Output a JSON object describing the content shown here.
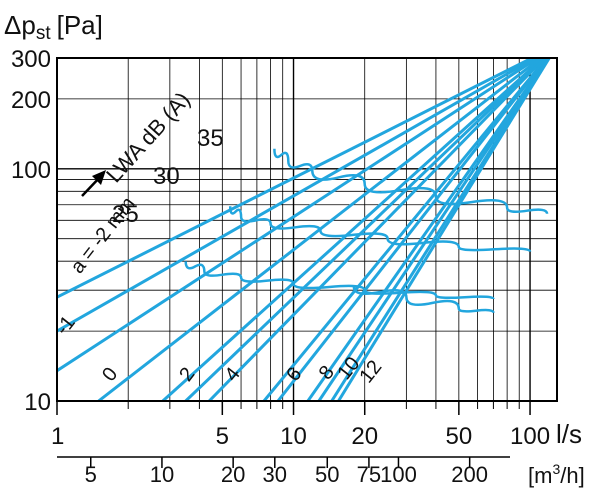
{
  "chart_data": {
    "type": "line",
    "y_axis": {
      "label": "Δp",
      "label_sub": "st",
      "unit": "[Pa]",
      "scale": "log",
      "range": [
        10,
        300
      ],
      "ticks": [
        {
          "value": 10,
          "label": "10"
        },
        {
          "value": 100,
          "label": "100"
        },
        {
          "value": 200,
          "label": "200"
        },
        {
          "value": 300,
          "label": "300"
        }
      ]
    },
    "x_axis_top": {
      "unit": "l/s",
      "scale": "log",
      "range": [
        1,
        130
      ],
      "ticks": [
        {
          "value": 1,
          "label": "1"
        },
        {
          "value": 5,
          "label": "5"
        },
        {
          "value": 10,
          "label": "10"
        },
        {
          "value": 20,
          "label": "20"
        },
        {
          "value": 50,
          "label": "50"
        },
        {
          "value": 100,
          "label": "100"
        }
      ]
    },
    "x_axis_bottom": {
      "unit_base": "[m",
      "unit_sup": "3",
      "unit_tail": "/h]",
      "scale": "log",
      "ticks": [
        {
          "value": 5,
          "label": "5"
        },
        {
          "value": 10,
          "label": "10"
        },
        {
          "value": 20,
          "label": "20"
        },
        {
          "value": 30,
          "label": "30"
        },
        {
          "value": 50,
          "label": "50"
        },
        {
          "value": 75,
          "label": "75"
        },
        {
          "value": 100,
          "label": "100"
        },
        {
          "value": 200,
          "label": "200"
        }
      ]
    },
    "grid": true,
    "series_color": "#22a6de",
    "lines": [
      {
        "label": "a = -2 mm",
        "points": [
          [
            1,
            28
          ],
          [
            130,
            340
          ]
        ]
      },
      {
        "label": "-1",
        "points": [
          [
            1,
            20
          ],
          [
            130,
            340
          ]
        ]
      },
      {
        "label": "0",
        "points": [
          [
            1,
            13.5
          ],
          [
            130,
            340
          ]
        ]
      },
      {
        "label": "",
        "points": [
          [
            1.5,
            10
          ],
          [
            130,
            340
          ]
        ]
      },
      {
        "label": "2",
        "points": [
          [
            2.8,
            10
          ],
          [
            130,
            340
          ]
        ]
      },
      {
        "label": "",
        "points": [
          [
            3.5,
            10
          ],
          [
            130,
            340
          ]
        ]
      },
      {
        "label": "4",
        "points": [
          [
            4.4,
            10
          ],
          [
            130,
            340
          ]
        ]
      },
      {
        "label": "",
        "points": [
          [
            7.5,
            10
          ],
          [
            130,
            340
          ]
        ]
      },
      {
        "label": "6",
        "points": [
          [
            8.6,
            10
          ],
          [
            130,
            340
          ]
        ]
      },
      {
        "label": "",
        "points": [
          [
            11.5,
            10
          ],
          [
            130,
            340
          ]
        ]
      },
      {
        "label": "8",
        "points": [
          [
            12.8,
            10
          ],
          [
            130,
            340
          ]
        ]
      },
      {
        "label": "10",
        "points": [
          [
            14.5,
            10
          ],
          [
            130,
            340
          ]
        ]
      },
      {
        "label": "12",
        "points": [
          [
            15.5,
            10
          ],
          [
            130,
            340
          ]
        ]
      }
    ],
    "noise_curves": {
      "title": "LWA dB (A)",
      "curves": [
        {
          "label": "25",
          "points": [
            [
              3.5,
              40
            ],
            [
              4.2,
              36
            ],
            [
              6,
              34
            ],
            [
              10,
              32
            ],
            [
              20,
              30
            ],
            [
              40,
              28.5
            ],
            [
              70,
              27.5
            ]
          ]
        },
        {
          "label": "30",
          "points": [
            [
              5.4,
              69
            ],
            [
              6,
              62
            ],
            [
              8,
              58
            ],
            [
              13,
              54
            ],
            [
              25,
              50
            ],
            [
              50,
              46
            ],
            [
              100,
              44
            ]
          ]
        },
        {
          "label": "35",
          "points": [
            [
              8.3,
              122
            ],
            [
              9.5,
              108
            ],
            [
              12,
              98
            ],
            [
              20,
              86
            ],
            [
              40,
              76
            ],
            [
              80,
              68
            ],
            [
              118,
              64
            ]
          ]
        },
        {
          "label": "",
          "points": [
            [
              18,
              31
            ],
            [
              30,
              28
            ],
            [
              50,
              25
            ],
            [
              70,
              24
            ]
          ]
        }
      ]
    }
  }
}
